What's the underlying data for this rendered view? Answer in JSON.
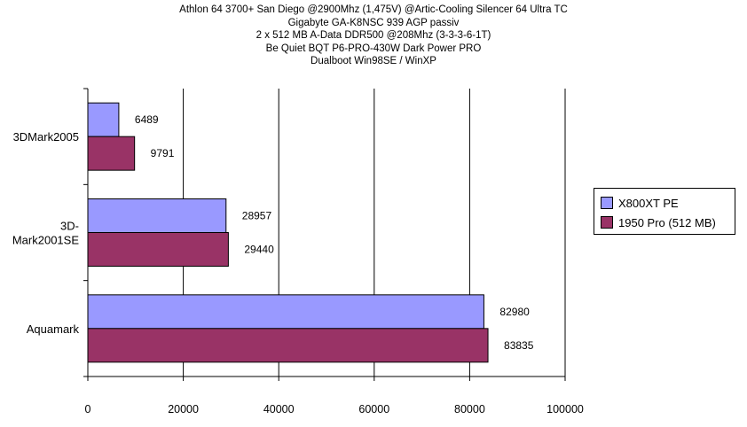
{
  "chart_data": {
    "type": "bar",
    "orientation": "horizontal",
    "title_lines": [
      "Athlon 64 3700+ San Diego @2900Mhz (1,475V) @Artic-Cooling Silencer 64 Ultra TC",
      "Gigabyte GA-K8NSC 939 AGP passiv",
      "2 x 512 MB A-Data DDR500 @208Mhz (3-3-3-6-1T)",
      "Be Quiet BQT P6-PRO-430W Dark Power PRO",
      "Dualboot Win98SE / WinXP"
    ],
    "categories": [
      [
        "3DMark2005"
      ],
      [
        "3D-",
        "Mark2001SE"
      ],
      [
        "Aquamark"
      ]
    ],
    "series": [
      {
        "name": "X800XT PE",
        "color": "#9999ff",
        "values": [
          6489,
          28957,
          82980
        ],
        "labels": [
          "6489",
          "28957",
          "82980"
        ]
      },
      {
        "name": "1950 Pro (512 MB)",
        "color": "#993366",
        "values": [
          9791,
          29440,
          83835
        ],
        "labels": [
          "9791",
          "29440",
          "83835"
        ]
      }
    ],
    "xlim": [
      0,
      100000
    ],
    "xticks": [
      0,
      20000,
      40000,
      60000,
      80000,
      100000
    ],
    "xtick_labels": [
      "0",
      "20000",
      "40000",
      "60000",
      "80000",
      "100000"
    ],
    "grid": true,
    "legend_position": "right"
  }
}
